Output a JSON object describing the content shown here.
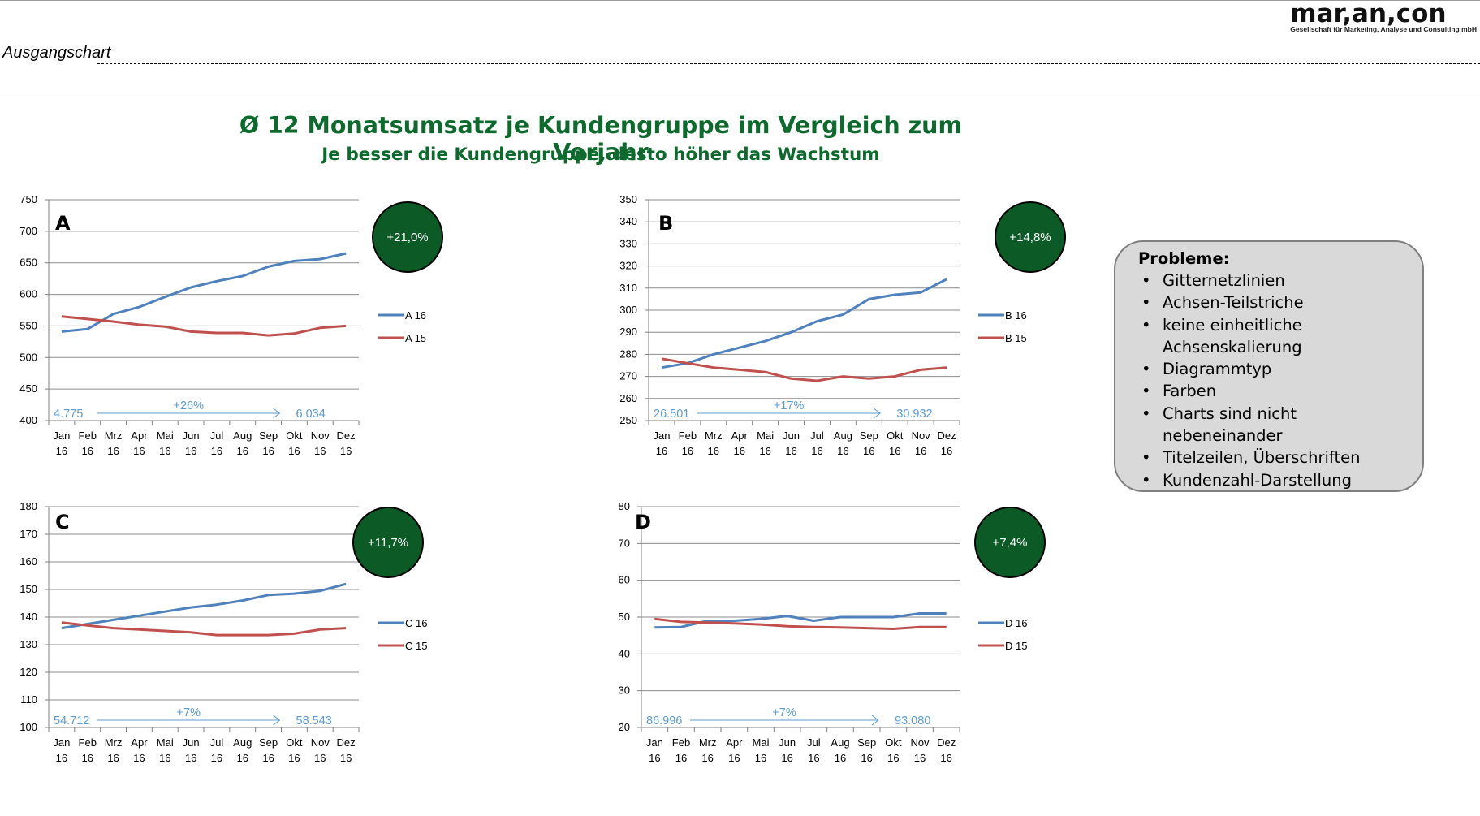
{
  "header": {
    "logo_text": "mar,an,con",
    "logo_subtitle": "Gesellschaft für Marketing, Analyse und Consulting mbH",
    "section_label": "Ausgangschart"
  },
  "title": "Ø 12 Monatsumsatz je Kundengruppe im Vergleich zum Vorjahr",
  "subtitle": "Je besser die Kundengruppe, desto höher das Wachstum",
  "problems": {
    "title": "Probleme:",
    "items": [
      "Gitternetzlinien",
      "Achsen-Teilstriche",
      "keine einheitliche Achsenskalierung",
      "Diagrammtyp",
      "Farben",
      "Charts sind nicht nebeneinander",
      "Titelzeilen, Überschriften",
      "Kundenzahl-Darstellung"
    ]
  },
  "colors": {
    "series_2016": "#4f81bd",
    "series_2015": "#c0504d",
    "badge": "#0c5a26",
    "title": "#0c6b2c",
    "annotation": "#5b9bd5"
  },
  "chart_data": [
    {
      "type": "line",
      "panel_label": "A",
      "categories": [
        "Jan 16",
        "Feb 16",
        "Mrz 16",
        "Apr 16",
        "Mai 16",
        "Jun 16",
        "Jul 16",
        "Aug 16",
        "Sep 16",
        "Okt 16",
        "Nov 16",
        "Dez 16"
      ],
      "series": [
        {
          "name": "A 16",
          "values": [
            541,
            545,
            569,
            580,
            596,
            611,
            621,
            629,
            644,
            653,
            656,
            665
          ]
        },
        {
          "name": "A 15",
          "values": [
            565,
            561,
            557,
            552,
            549,
            541,
            539,
            539,
            535,
            538,
            547,
            550
          ]
        }
      ],
      "ylim": [
        400,
        750
      ],
      "yticks": [
        400,
        450,
        500,
        550,
        600,
        650,
        700,
        750
      ],
      "growth_badge": "+21,0%",
      "customers_start": "4.775",
      "customers_end": "6.034",
      "customers_change": "+26%",
      "grid": true,
      "legend": "right"
    },
    {
      "type": "line",
      "panel_label": "B",
      "categories": [
        "Jan 16",
        "Feb 16",
        "Mrz 16",
        "Apr 16",
        "Mai 16",
        "Jun 16",
        "Jul 16",
        "Aug 16",
        "Sep 16",
        "Okt 16",
        "Nov 16",
        "Dez 16"
      ],
      "series": [
        {
          "name": "B 16",
          "values": [
            274,
            276,
            280,
            283,
            286,
            290,
            295,
            298,
            305,
            307,
            308,
            314
          ]
        },
        {
          "name": "B 15",
          "values": [
            278,
            276,
            274,
            273,
            272,
            269,
            268,
            270,
            269,
            270,
            273,
            274
          ]
        }
      ],
      "ylim": [
        250,
        350
      ],
      "yticks": [
        250,
        260,
        270,
        280,
        290,
        300,
        310,
        320,
        330,
        340,
        350
      ],
      "growth_badge": "+14,8%",
      "customers_start": "26.501",
      "customers_end": "30.932",
      "customers_change": "+17%",
      "grid": true,
      "legend": "right"
    },
    {
      "type": "line",
      "panel_label": "C",
      "categories": [
        "Jan 16",
        "Feb 16",
        "Mrz 16",
        "Apr 16",
        "Mai 16",
        "Jun 16",
        "Jul 16",
        "Aug 16",
        "Sep 16",
        "Okt 16",
        "Nov 16",
        "Dez 16"
      ],
      "series": [
        {
          "name": "C 16",
          "values": [
            136,
            137.5,
            139,
            140.5,
            142,
            143.5,
            144.5,
            146,
            148,
            148.5,
            149.5,
            152
          ]
        },
        {
          "name": "C 15",
          "values": [
            138,
            137,
            136,
            135.5,
            135,
            134.5,
            133.5,
            133.5,
            133.5,
            134,
            135.5,
            136
          ]
        }
      ],
      "ylim": [
        100,
        180
      ],
      "yticks": [
        100,
        110,
        120,
        130,
        140,
        150,
        160,
        170,
        180
      ],
      "growth_badge": "+11,7%",
      "customers_start": "54.712",
      "customers_end": "58.543",
      "customers_change": "+7%",
      "grid": true,
      "legend": "right"
    },
    {
      "type": "line",
      "panel_label": "D",
      "categories": [
        "Jan 16",
        "Feb 16",
        "Mrz 16",
        "Apr 16",
        "Mai 16",
        "Jun 16",
        "Jul 16",
        "Aug 16",
        "Sep 16",
        "Okt 16",
        "Nov 16",
        "Dez 16"
      ],
      "series": [
        {
          "name": "D 16",
          "values": [
            47.2,
            47.3,
            49,
            49,
            49.5,
            50.3,
            49,
            50,
            50,
            50,
            51,
            51
          ]
        },
        {
          "name": "D 15",
          "values": [
            49.5,
            48.7,
            48.5,
            48.3,
            48,
            47.5,
            47.3,
            47.2,
            47,
            46.8,
            47.3,
            47.3
          ]
        }
      ],
      "ylim": [
        20,
        80
      ],
      "yticks": [
        20,
        30,
        40,
        50,
        60,
        70,
        80
      ],
      "growth_badge": "+7,4%",
      "customers_start": "86.996",
      "customers_end": "93.080",
      "customers_change": "+7%",
      "grid": true,
      "legend": "right"
    }
  ]
}
